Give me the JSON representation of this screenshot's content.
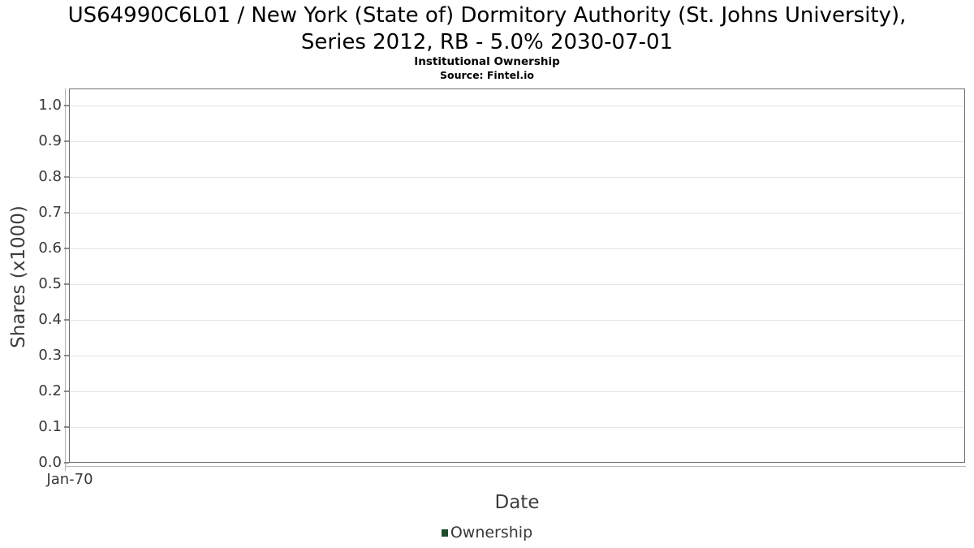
{
  "header": {
    "title_line1": "US64990C6L01 / New York (State of) Dormitory Authority (St. Johns University),",
    "title_line2": "Series 2012, RB - 5.0% 2030-07-01",
    "subtitle": "Institutional Ownership",
    "source": "Source: Fintel.io"
  },
  "chart_data": {
    "type": "line",
    "title": "US64990C6L01 / New York (State of) Dormitory Authority (St. Johns University), Series 2012, RB - 5.0% 2030-07-01",
    "subtitle": "Institutional Ownership",
    "source": "Source: Fintel.io",
    "xlabel": "Date",
    "ylabel": "Shares (x1000)",
    "x_tick_labels": [
      "Jan-70"
    ],
    "y_tick_labels": [
      "0.0",
      "0.1",
      "0.2",
      "0.3",
      "0.4",
      "0.5",
      "0.6",
      "0.7",
      "0.8",
      "0.9",
      "1.0"
    ],
    "y_tick_values": [
      0,
      0.1,
      0.2,
      0.3,
      0.4,
      0.5,
      0.6,
      0.7,
      0.8,
      0.9,
      1.0
    ],
    "ylim": [
      0,
      1.048
    ],
    "grid": "horizontal-only",
    "series": [
      {
        "name": "Ownership",
        "color": "#1e4a2d",
        "x": [],
        "values": []
      }
    ],
    "legend": {
      "position": "bottom-center",
      "entries": [
        {
          "label": "Ownership",
          "color": "#1e4a2d"
        }
      ]
    }
  },
  "colors": {
    "background": "#ffffff",
    "title_text": "#000000",
    "tick_label": "#383838",
    "axis_label": "#3d3d3d",
    "gridline": "#e4e4e4",
    "plot_border": "#6f6f6f",
    "axis_line": "#b5b5b5",
    "legend_marker": "#1e4a2d"
  }
}
